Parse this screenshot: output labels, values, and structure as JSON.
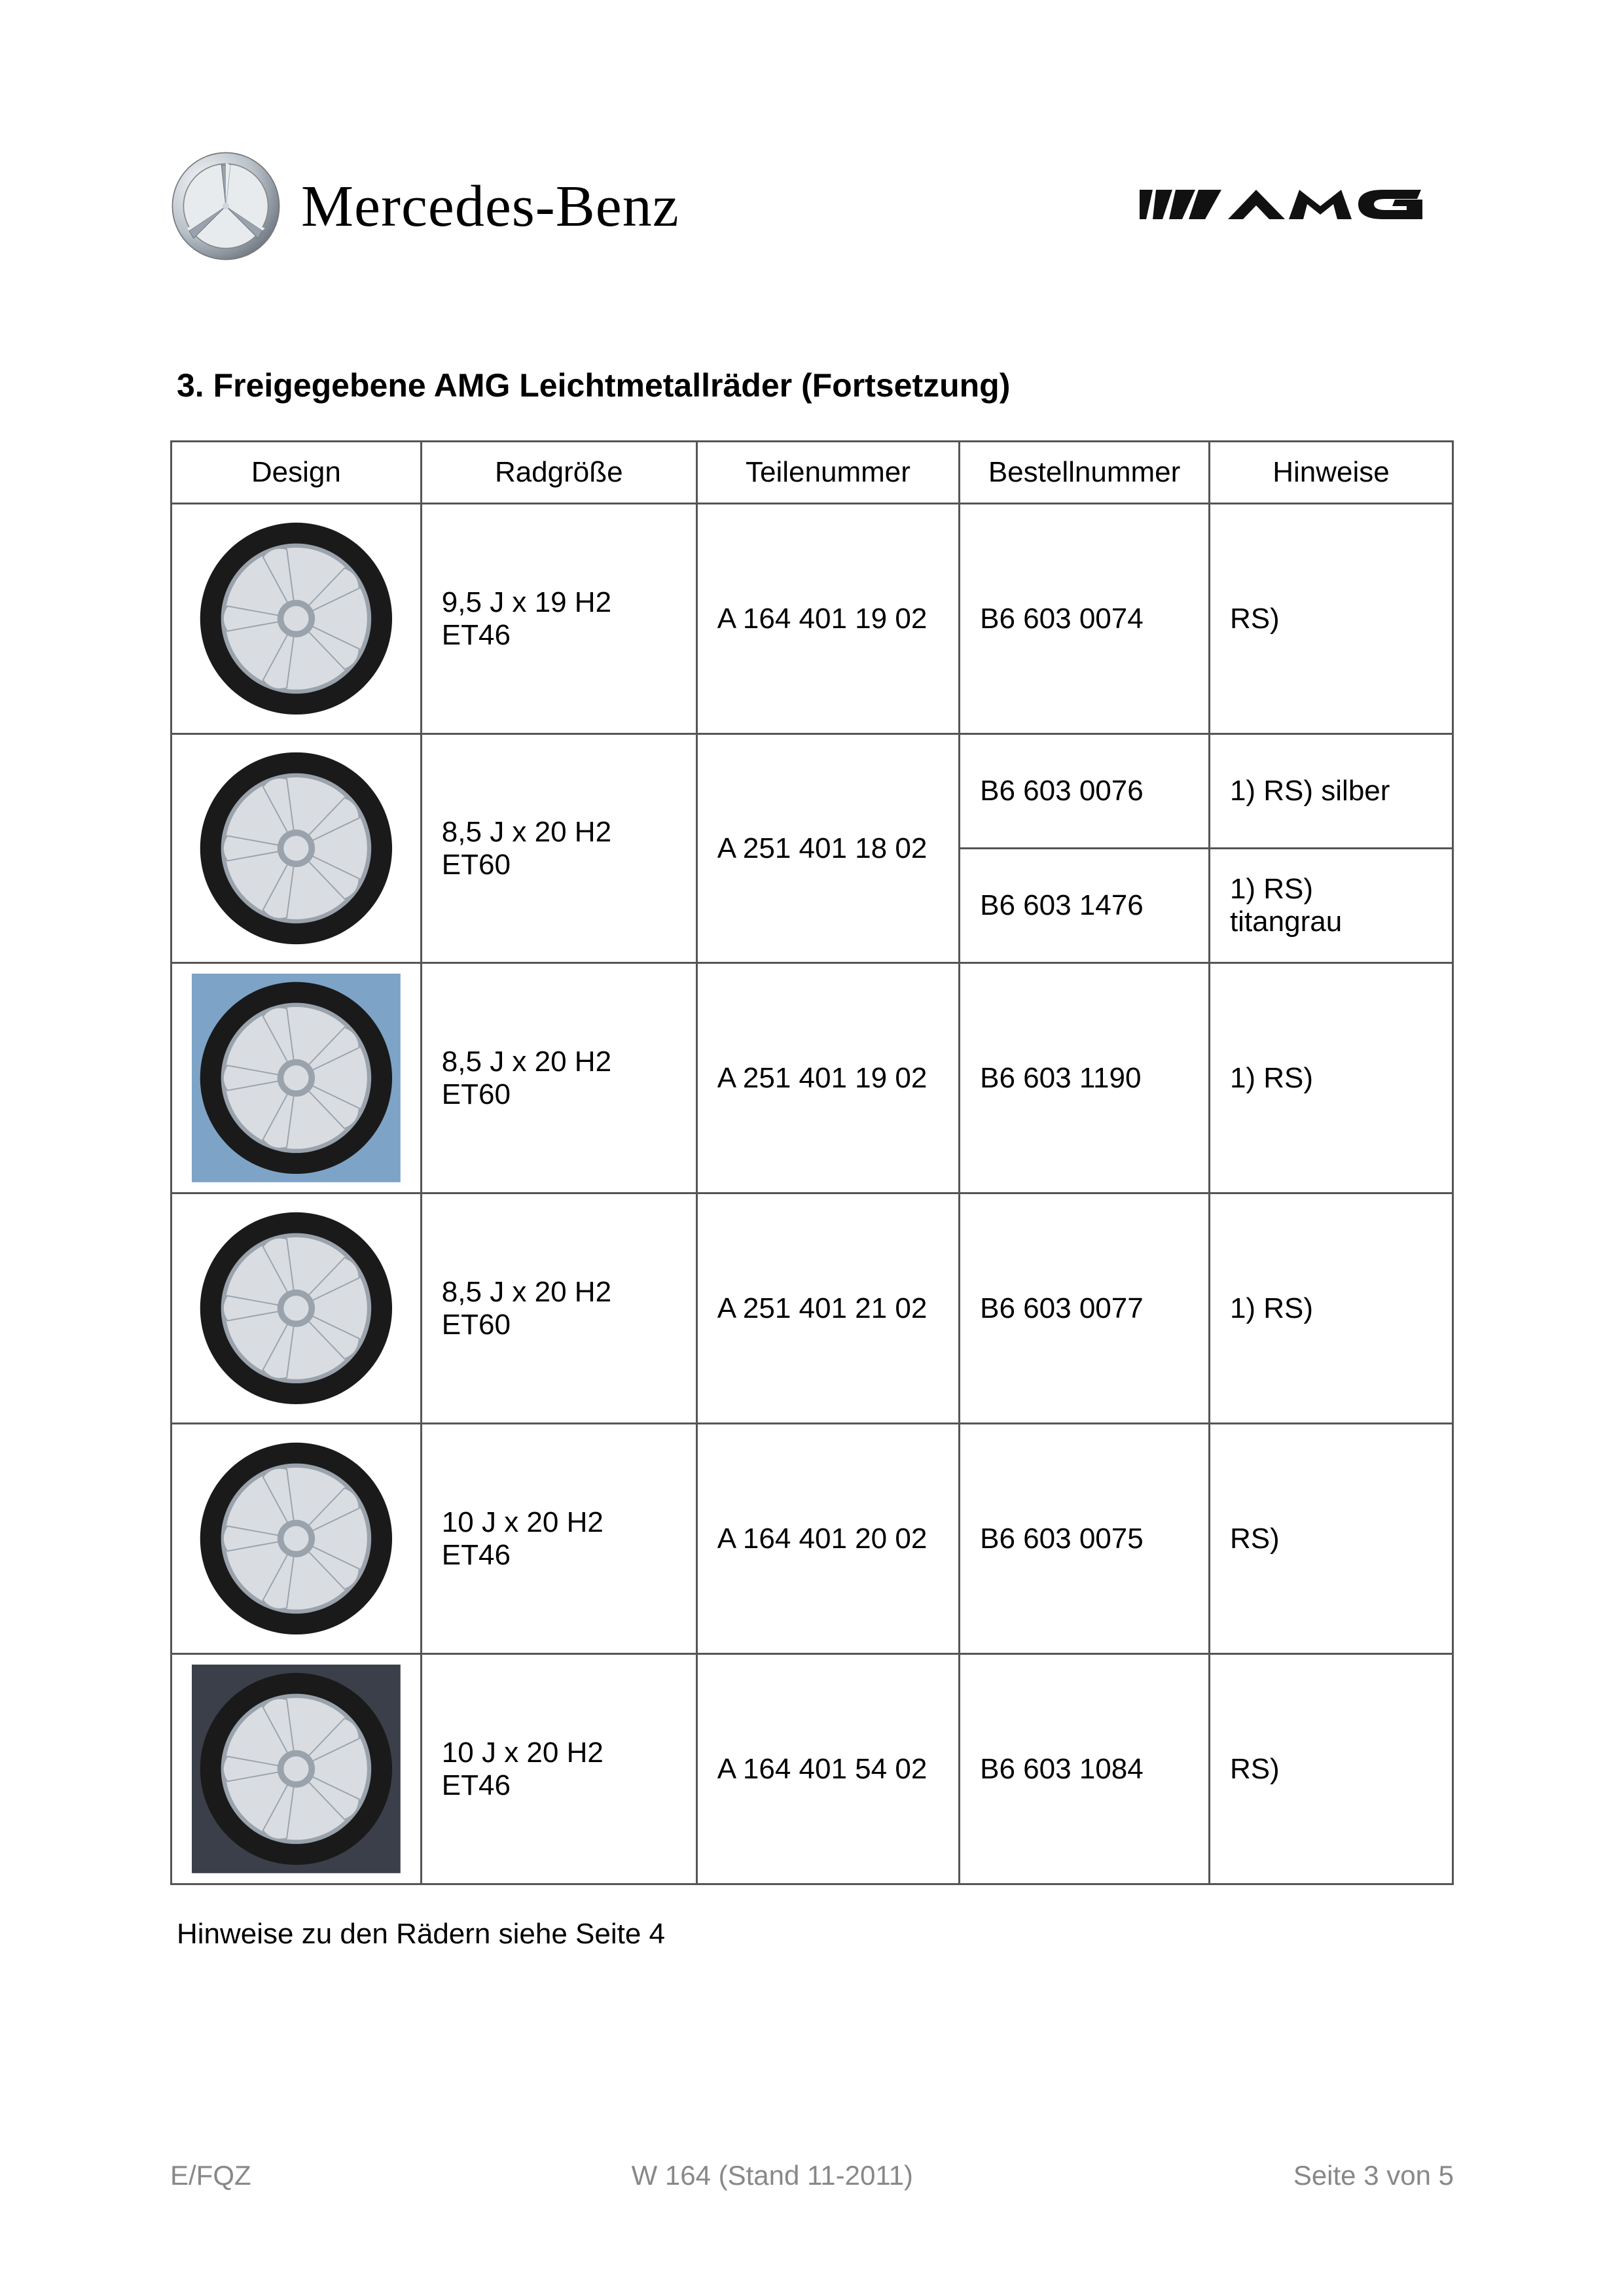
{
  "header": {
    "brand_name": "Mercedes-Benz",
    "amg_label": "AMG"
  },
  "section_title": "3. Freigegebene AMG Leichtmetallräder (Fortsetzung)",
  "table": {
    "columns": [
      "Design",
      "Radgröße",
      "Teilenummer",
      "Bestellnummer",
      "Hinweise"
    ],
    "rows": [
      {
        "wheel_icon": "wheel-5spoke-light",
        "size": "9,5 J x 19 H2  ET46",
        "part": "A 164 401 19 02",
        "orders": [
          {
            "order": "B6 603 0074",
            "note": "RS)"
          }
        ]
      },
      {
        "wheel_icon": "wheel-5spoke-light",
        "size": "8,5 J x 20 H2  ET60",
        "part": "A 251 401 18 02",
        "orders": [
          {
            "order": "B6 603 0076",
            "note": "1)  RS)   silber"
          },
          {
            "order": "B6 603 1476",
            "note": "1)  RS)   titangrau"
          }
        ]
      },
      {
        "wheel_icon": "wheel-5spoke-blue",
        "size": "8,5 J x 20 H2  ET60",
        "part": "A 251 401 19 02",
        "orders": [
          {
            "order": "B6 603 1190",
            "note": "1)  RS)"
          }
        ]
      },
      {
        "wheel_icon": "wheel-5spoke-light",
        "size": "8,5 J x 20 H2  ET60",
        "part": "A 251 401 21 02",
        "orders": [
          {
            "order": "B6 603 0077",
            "note": "1)  RS)"
          }
        ]
      },
      {
        "wheel_icon": "wheel-5spoke-light",
        "size": "10 J x 20 H2  ET46",
        "part": "A 164 401 20 02",
        "orders": [
          {
            "order": "B6 603 0075",
            "note": "RS)"
          }
        ]
      },
      {
        "wheel_icon": "wheel-5spoke-darkbg",
        "size": "10 J x 20 H2  ET46",
        "part": "A 164 401 54 02",
        "orders": [
          {
            "order": "B6 603 1084",
            "note": "RS)"
          }
        ]
      }
    ]
  },
  "note_below": "Hinweise zu den Rädern siehe Seite 4",
  "footer": {
    "left": "E/FQZ",
    "center": "W 164  (Stand 11-2011)",
    "right": "Seite 3 von 5"
  },
  "colors": {
    "text": "#000000",
    "border": "#555555",
    "footer_text": "#888888",
    "tire": "#1a1a1a",
    "rim_light": "#d9dde2",
    "rim_dark": "#9aa2ac",
    "bg_blue": "#7da3c7",
    "bg_dark": "#3a3f4a"
  }
}
